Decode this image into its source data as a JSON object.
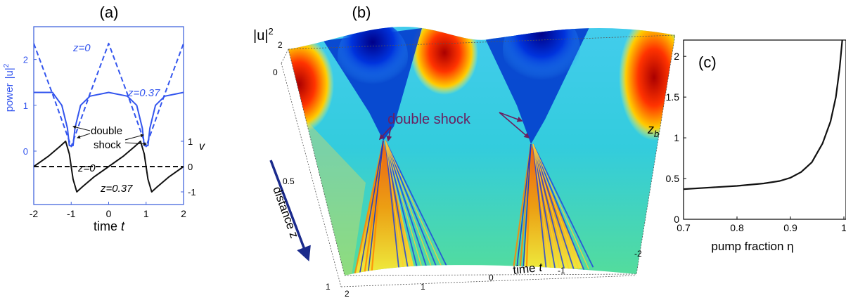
{
  "panel_a": {
    "label": "(a)",
    "ylabel_power": "power",
    "ylabel_power_sym": "|u|",
    "ylabel_power_exp": "2",
    "ylabel_v": "v",
    "xlabel_word": "time",
    "xlabel_sym": "t",
    "ann_z0_top": "z=0",
    "ann_z037_top": "z=0.37",
    "ann_double": "double",
    "ann_shock": "shock",
    "ann_z0_bottom": "z=0",
    "ann_z037_bottom": "z=0.37",
    "colors": {
      "frame": "#4466dd",
      "power": "#3355ee",
      "velocity": "#111111"
    }
  },
  "panel_b": {
    "label": "(b)",
    "ylabel_sym": "|u|",
    "ylabel_exp": "2",
    "annotation": "double shock",
    "z_axis_label": "distance z",
    "t_axis_label_word": "time",
    "t_axis_label_sym": "t",
    "ticks_power": [
      "2",
      "0"
    ],
    "ticks_z": [
      "0.5",
      "1"
    ],
    "ticks_t": [
      "2",
      "1",
      "0",
      "-1",
      "-2"
    ],
    "colors": {
      "arrow": "#1a2a8c",
      "annotation": "#6a2060"
    }
  },
  "panel_c": {
    "label": "(c)",
    "ylabel_sym": "z",
    "ylabel_sub": "b",
    "xlabel": "pump fraction η",
    "colors": {
      "line": "#111111"
    }
  },
  "chart_data": [
    {
      "type": "line",
      "panel": "(a)",
      "xlabel": "time t",
      "ylabel": "power |u|²",
      "y2label": "v",
      "xlim": [
        -2,
        2
      ],
      "ylim": [
        0,
        2.5
      ],
      "y2lim": [
        -1.5,
        1.5
      ],
      "x_ticks": [
        -2,
        -1,
        0,
        1,
        2
      ],
      "y_ticks": [
        0,
        1,
        2
      ],
      "y2_ticks": [
        -1,
        0,
        1
      ],
      "series": [
        {
          "name": "z=0",
          "axis": "power",
          "style": "dashed",
          "color": "#3355ee",
          "x": [
            -2,
            -1.5,
            -1,
            -0.5,
            0,
            0.5,
            1,
            1.5,
            2
          ],
          "y": [
            2.35,
            1.25,
            0.1,
            1.25,
            2.35,
            1.25,
            0.1,
            1.25,
            2.35
          ]
        },
        {
          "name": "z=0.37",
          "axis": "power",
          "style": "solid",
          "color": "#3355ee",
          "x": [
            -2,
            -1.5,
            -1.25,
            -1.1,
            -1.05,
            -0.95,
            -0.9,
            -0.75,
            -0.5,
            0,
            0.5,
            0.75,
            0.9,
            0.95,
            1.05,
            1.1,
            1.25,
            1.5,
            2
          ],
          "y": [
            1.28,
            1.28,
            1.0,
            0.5,
            0.12,
            0.12,
            0.5,
            1.0,
            1.2,
            1.28,
            1.2,
            1.0,
            0.5,
            0.12,
            0.12,
            0.5,
            1.0,
            1.2,
            1.28
          ]
        },
        {
          "name": "z=0",
          "axis": "v",
          "style": "dashed",
          "color": "#111111",
          "x": [
            -2,
            2
          ],
          "y": [
            0,
            0
          ]
        },
        {
          "name": "z=0.37",
          "axis": "v",
          "style": "solid",
          "color": "#111111",
          "x": [
            -2,
            -1.6,
            -1.3,
            -1.15,
            -1.05,
            -0.95,
            -0.85,
            -0.7,
            -0.4,
            0,
            0.4,
            0.7,
            0.85,
            0.95,
            1.05,
            1.15,
            1.3,
            1.6,
            2
          ],
          "y": [
            0,
            0.42,
            0.8,
            1.0,
            0.5,
            -0.5,
            -1.0,
            -0.8,
            -0.42,
            0,
            0.42,
            0.8,
            1.0,
            0.5,
            -0.5,
            -1.0,
            -0.8,
            -0.42,
            0
          ]
        }
      ]
    },
    {
      "type": "heatmap",
      "panel": "(b)",
      "zlabel": "|u|²",
      "xlabel": "time t",
      "ylabel": "distance z",
      "t_range": [
        -2,
        2
      ],
      "z_range": [
        0,
        1
      ],
      "power_range": [
        0,
        2
      ]
    },
    {
      "type": "line",
      "panel": "(c)",
      "xlabel": "pump fraction η",
      "ylabel": "z_b",
      "xlim": [
        0.7,
        1.0
      ],
      "ylim": [
        0,
        2.2
      ],
      "x_ticks": [
        0.7,
        0.8,
        0.9,
        1
      ],
      "x_tick_labels": [
        "0.7",
        "0.8",
        "0.9",
        "1"
      ],
      "y_ticks": [
        0,
        0.5,
        1,
        1.5,
        2
      ],
      "y_tick_labels": [
        "0",
        "0.5",
        "1",
        "1.5",
        "2"
      ],
      "series": [
        {
          "x": [
            0.7,
            0.75,
            0.8,
            0.85,
            0.88,
            0.9,
            0.92,
            0.94,
            0.96,
            0.975,
            0.985,
            0.992,
            0.997
          ],
          "y": [
            0.37,
            0.39,
            0.41,
            0.44,
            0.47,
            0.51,
            0.58,
            0.7,
            0.93,
            1.2,
            1.5,
            1.85,
            2.2
          ]
        }
      ]
    }
  ]
}
